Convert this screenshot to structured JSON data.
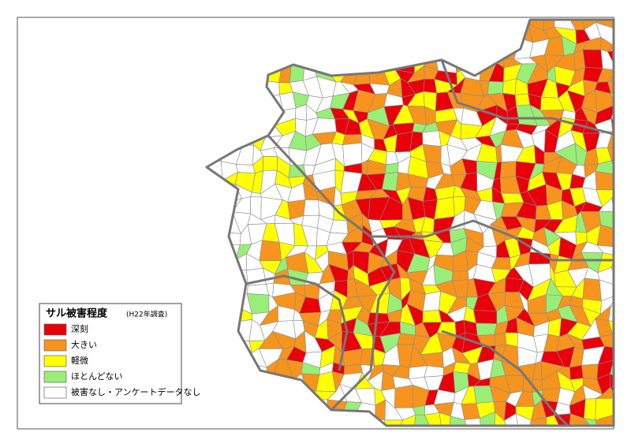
{
  "legend": {
    "title": "サル被害程度",
    "note": "(H22年調査)",
    "items": [
      {
        "label": "深刻",
        "color": "#e8000b"
      },
      {
        "label": "大きい",
        "color": "#f7941d"
      },
      {
        "label": "軽微",
        "color": "#ffff00"
      },
      {
        "label": "ほとんどない",
        "color": "#99ee77"
      },
      {
        "label": "被害なし・アンケートデータなし",
        "color": "#ffffff"
      }
    ]
  }
}
